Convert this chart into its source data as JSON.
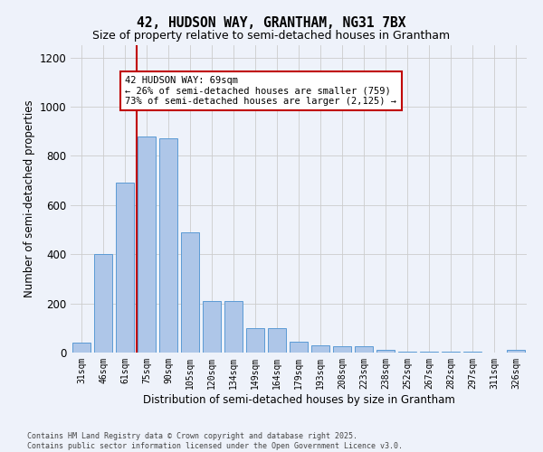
{
  "title": "42, HUDSON WAY, GRANTHAM, NG31 7BX",
  "subtitle": "Size of property relative to semi-detached houses in Grantham",
  "xlabel": "Distribution of semi-detached houses by size in Grantham",
  "ylabel": "Number of semi-detached properties",
  "categories": [
    "31sqm",
    "46sqm",
    "61sqm",
    "75sqm",
    "90sqm",
    "105sqm",
    "120sqm",
    "134sqm",
    "149sqm",
    "164sqm",
    "179sqm",
    "193sqm",
    "208sqm",
    "223sqm",
    "238sqm",
    "252sqm",
    "267sqm",
    "282sqm",
    "297sqm",
    "311sqm",
    "326sqm"
  ],
  "values": [
    40,
    400,
    690,
    880,
    870,
    490,
    210,
    210,
    100,
    100,
    45,
    30,
    25,
    25,
    12,
    2,
    2,
    2,
    5,
    1,
    10
  ],
  "bar_color": "#aec6e8",
  "bar_edge_color": "#5b9bd5",
  "background_color": "#eef2fa",
  "grid_color": "#cccccc",
  "vline_x": 2.53,
  "vline_color": "#c00000",
  "annotation_text": "42 HUDSON WAY: 69sqm\n← 26% of semi-detached houses are smaller (759)\n73% of semi-detached houses are larger (2,125) →",
  "annotation_box_color": "#c00000",
  "footer_text": "Contains HM Land Registry data © Crown copyright and database right 2025.\nContains public sector information licensed under the Open Government Licence v3.0.",
  "ylim": [
    0,
    1250
  ],
  "yticks": [
    0,
    200,
    400,
    600,
    800,
    1000,
    1200
  ]
}
